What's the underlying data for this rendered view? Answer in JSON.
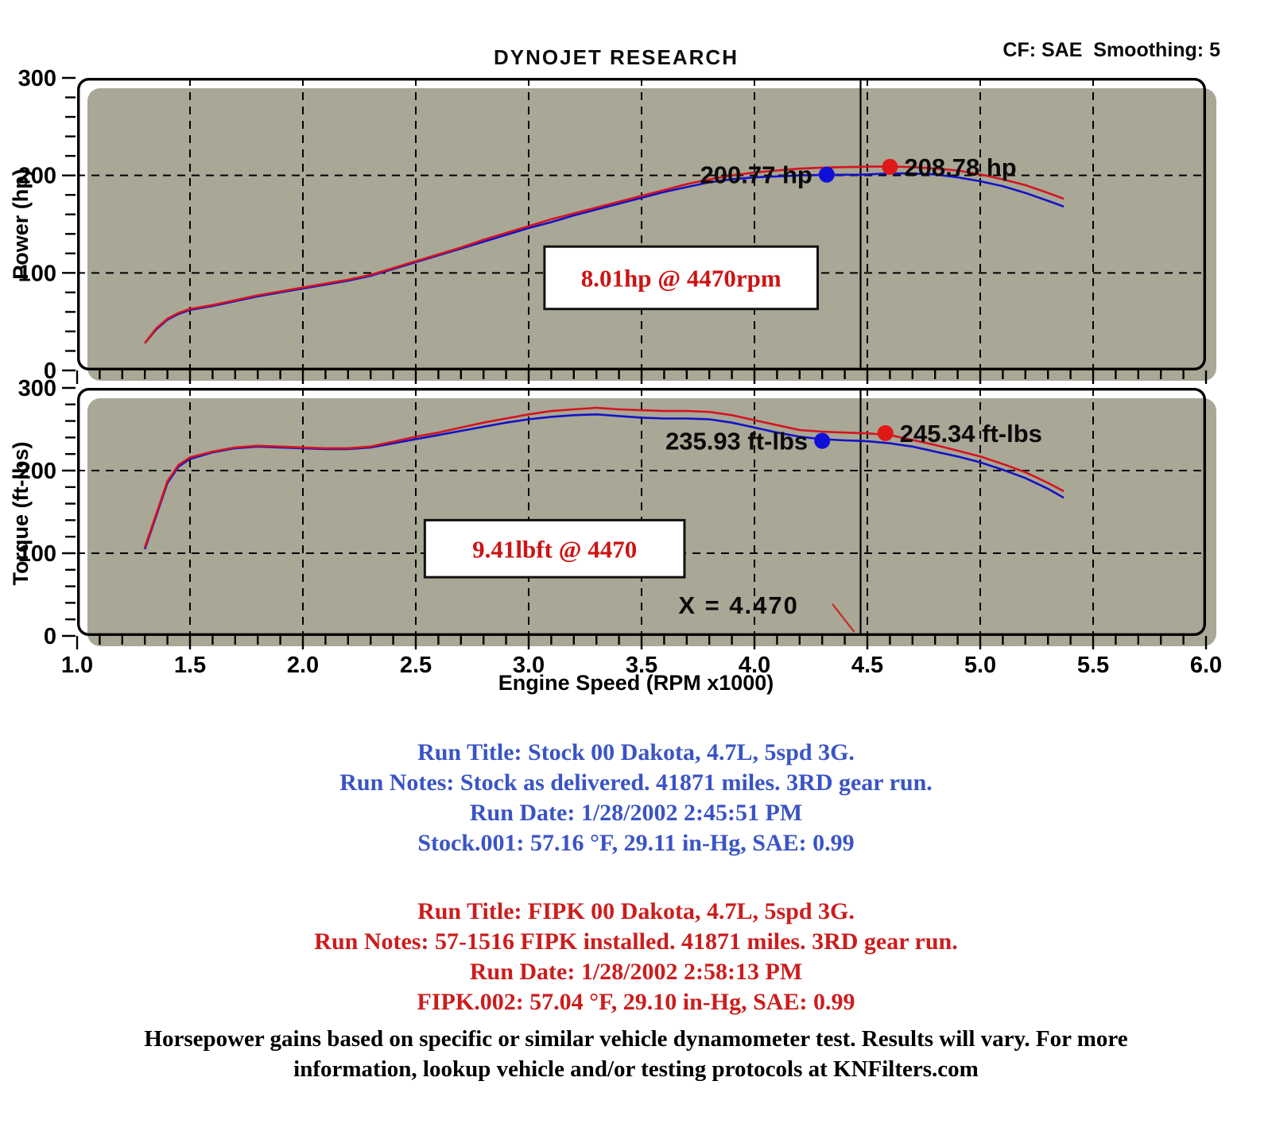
{
  "header": {
    "title": "DYNOJET RESEARCH",
    "cf_label": "CF: SAE  Smoothing: 5"
  },
  "chart_data": [
    {
      "type": "line",
      "name": "power",
      "ylabel": "Power (hp)",
      "xlim": [
        1.0,
        6.0
      ],
      "ylim": [
        0,
        300
      ],
      "yticks": [
        0,
        100,
        200,
        300
      ],
      "ytick_step_minor": 20,
      "xtick_step_minor": 0.1,
      "xgrid": [
        1.5,
        2.0,
        2.5,
        3.0,
        3.5,
        4.0,
        4.5,
        5.0,
        5.5
      ],
      "ygrid": [
        100,
        200
      ],
      "cursor_x": 4.47,
      "series": [
        {
          "name": "Stock",
          "color": "#1212c8",
          "x": [
            1.3,
            1.35,
            1.4,
            1.45,
            1.5,
            1.6,
            1.7,
            1.8,
            1.9,
            2.0,
            2.1,
            2.2,
            2.3,
            2.4,
            2.5,
            2.6,
            2.7,
            2.8,
            2.9,
            3.0,
            3.1,
            3.2,
            3.3,
            3.4,
            3.5,
            3.6,
            3.7,
            3.8,
            3.9,
            4.0,
            4.1,
            4.2,
            4.3,
            4.4,
            4.47,
            4.5,
            4.6,
            4.7,
            4.8,
            4.9,
            5.0,
            5.1,
            5.2,
            5.3,
            5.37
          ],
          "y": [
            28,
            42,
            52,
            58,
            62,
            66,
            71,
            76,
            80,
            84,
            88,
            92,
            97,
            104,
            111,
            118,
            125,
            132,
            139,
            146,
            152,
            159,
            165,
            171,
            177,
            183,
            188,
            193,
            196,
            198,
            199,
            200,
            200.5,
            200.7,
            200.8,
            201,
            202,
            202,
            201,
            198,
            194,
            189,
            182,
            174,
            168
          ]
        },
        {
          "name": "FIPK",
          "color": "#d41420",
          "x": [
            1.3,
            1.35,
            1.4,
            1.45,
            1.5,
            1.6,
            1.7,
            1.8,
            1.9,
            2.0,
            2.1,
            2.2,
            2.3,
            2.4,
            2.5,
            2.6,
            2.7,
            2.8,
            2.9,
            3.0,
            3.1,
            3.2,
            3.3,
            3.4,
            3.5,
            3.6,
            3.7,
            3.8,
            3.9,
            4.0,
            4.1,
            4.2,
            4.3,
            4.4,
            4.47,
            4.5,
            4.6,
            4.7,
            4.8,
            4.9,
            5.0,
            5.1,
            5.2,
            5.3,
            5.37
          ],
          "y": [
            28,
            43,
            53,
            59,
            63,
            67,
            72,
            77,
            81,
            85,
            89,
            93,
            98,
            105,
            112,
            119,
            126,
            134,
            141,
            148,
            155,
            161,
            167,
            173,
            179,
            185,
            191,
            196,
            200,
            203,
            205,
            207,
            208,
            208.5,
            208.8,
            209,
            209,
            208.5,
            207,
            205,
            201,
            196,
            190,
            182,
            176
          ]
        }
      ],
      "markers": [
        {
          "label": "200.77 hp",
          "x": 4.32,
          "y": 200.77,
          "color": "#0f0fd8",
          "label_side": "left"
        },
        {
          "label": "208.78 hp",
          "x": 4.6,
          "y": 208.78,
          "color": "#e01818",
          "label_side": "right"
        }
      ],
      "gain_box": {
        "text": "8.01hp @ 4470rpm",
        "x1": 3.07,
        "x2": 4.28,
        "y_top": 127,
        "y_bot": 63
      }
    },
    {
      "type": "line",
      "name": "torque",
      "ylabel": "Torque (ft-lbs)",
      "xlabel": "Engine Speed (RPM x1000)",
      "xlim": [
        1.0,
        6.0
      ],
      "ylim": [
        0,
        300
      ],
      "yticks": [
        0,
        100,
        200,
        300
      ],
      "ytick_step_minor": 20,
      "xtick_step_minor": 0.1,
      "xtick_labels": [
        "1.0",
        "1.5",
        "2.0",
        "2.5",
        "3.0",
        "3.5",
        "4.0",
        "4.5",
        "5.0",
        "5.5",
        "6.0"
      ],
      "xgrid": [
        1.5,
        2.0,
        2.5,
        3.0,
        3.5,
        4.0,
        4.5,
        5.0,
        5.5
      ],
      "ygrid": [
        100,
        200
      ],
      "cursor_x": 4.47,
      "series": [
        {
          "name": "Stock",
          "color": "#1212c8",
          "x": [
            1.3,
            1.35,
            1.4,
            1.45,
            1.5,
            1.6,
            1.7,
            1.8,
            1.9,
            2.0,
            2.1,
            2.2,
            2.3,
            2.4,
            2.5,
            2.6,
            2.7,
            2.8,
            2.9,
            3.0,
            3.1,
            3.2,
            3.3,
            3.4,
            3.5,
            3.6,
            3.7,
            3.8,
            3.9,
            4.0,
            4.1,
            4.2,
            4.3,
            4.4,
            4.47,
            4.5,
            4.6,
            4.7,
            4.8,
            4.9,
            5.0,
            5.1,
            5.2,
            5.3,
            5.37
          ],
          "y": [
            105,
            145,
            185,
            205,
            214,
            222,
            227,
            229,
            228,
            227,
            226,
            226,
            228,
            233,
            238,
            243,
            248,
            253,
            258,
            262,
            265,
            267,
            268,
            266,
            264,
            263,
            263,
            262,
            258,
            252,
            246,
            241,
            238,
            236.5,
            235.9,
            235.5,
            233,
            229,
            223,
            217,
            210,
            201,
            191,
            178,
            167
          ]
        },
        {
          "name": "FIPK",
          "color": "#d41420",
          "x": [
            1.3,
            1.35,
            1.4,
            1.45,
            1.5,
            1.6,
            1.7,
            1.8,
            1.9,
            2.0,
            2.1,
            2.2,
            2.3,
            2.4,
            2.5,
            2.6,
            2.7,
            2.8,
            2.9,
            3.0,
            3.1,
            3.2,
            3.3,
            3.4,
            3.5,
            3.6,
            3.7,
            3.8,
            3.9,
            4.0,
            4.1,
            4.2,
            4.3,
            4.4,
            4.47,
            4.5,
            4.6,
            4.7,
            4.8,
            4.9,
            5.0,
            5.1,
            5.2,
            5.3,
            5.37
          ],
          "y": [
            107,
            147,
            187,
            207,
            216,
            223,
            228,
            230,
            229,
            228,
            227,
            227,
            229,
            235,
            241,
            246,
            252,
            258,
            263,
            268,
            272,
            274,
            276,
            274,
            273,
            272,
            272,
            271,
            267,
            261,
            255,
            249,
            247,
            246,
            245.3,
            245,
            243,
            237,
            231,
            224,
            217,
            208,
            198,
            185,
            175
          ]
        }
      ],
      "markers": [
        {
          "label": "235.93 ft-lbs",
          "x": 4.3,
          "y": 235.93,
          "color": "#0f0fd8",
          "label_side": "left"
        },
        {
          "label": "245.34 ft-lbs",
          "x": 4.58,
          "y": 245.34,
          "color": "#e01818",
          "label_side": "right"
        }
      ],
      "gain_box": {
        "text": "9.41lbft @ 4470",
        "x1": 2.54,
        "x2": 3.69,
        "y_top": 140,
        "y_bot": 71
      },
      "cursor_label": {
        "text": "X = 4.470",
        "x": 3.93,
        "y": 27
      }
    }
  ],
  "info_blocks": [
    {
      "name": "stock-run-info",
      "color": "#3a54c4",
      "lines": [
        "Run Title: Stock 00 Dakota, 4.7L, 5spd 3G.",
        "Run Notes: Stock as delivered. 41871 miles. 3RD gear run.",
        "Run Date: 1/28/2002 2:45:51 PM",
        "Stock.001: 57.16 °F, 29.11 in-Hg, SAE: 0.99"
      ]
    },
    {
      "name": "fipk-run-info",
      "color": "#cc1d1d",
      "lines": [
        "Run Title: FIPK 00 Dakota, 4.7L, 5spd 3G.",
        "Run Notes: 57-1516 FIPK installed. 41871 miles. 3RD gear run.",
        "Run Date: 1/28/2002 2:58:13 PM",
        "FIPK.002: 57.04 °F, 29.10 in-Hg, SAE: 0.99"
      ]
    }
  ],
  "footer": {
    "lines": [
      "Horsepower gains based on specific or similar vehicle dynamometer test. Results will vary. For more",
      "information, lookup vehicle and/or testing protocols at KNFilters.com"
    ]
  }
}
